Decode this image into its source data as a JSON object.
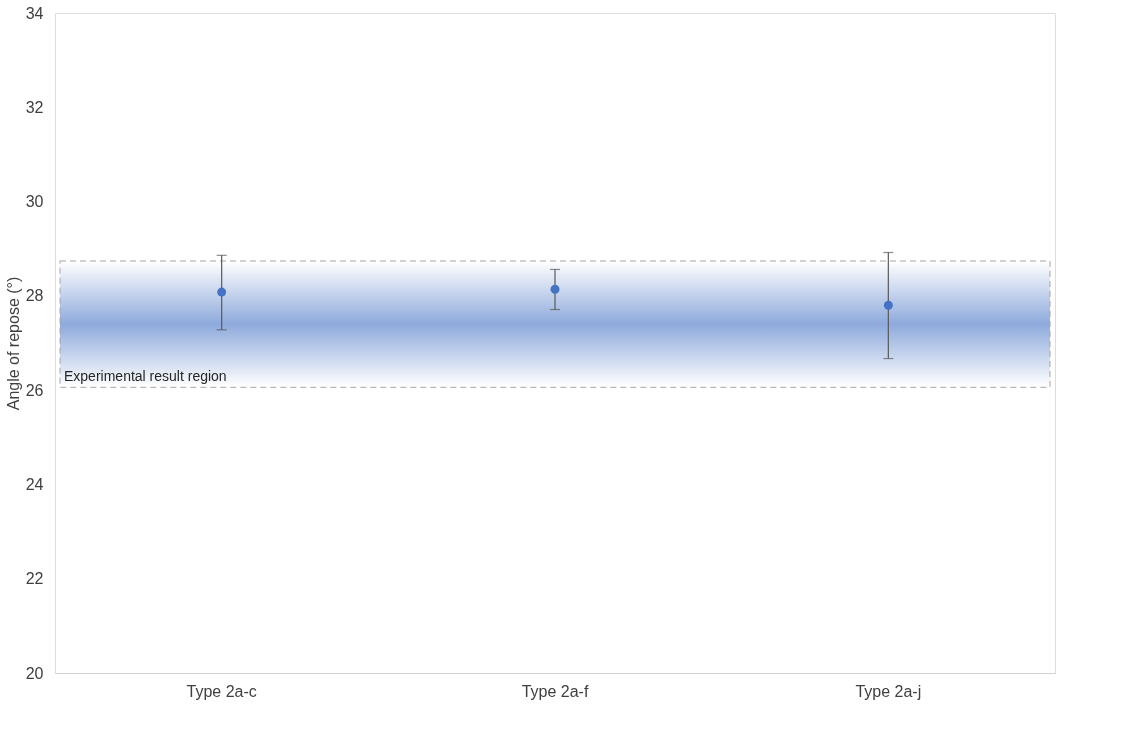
{
  "chart_data": {
    "type": "scatter",
    "categories": [
      "Type 2a-c",
      "Type 2a-f",
      "Type 2a-j"
    ],
    "series": [
      {
        "color": "#4472c4",
        "values": [
          28.08,
          28.14,
          27.8
        ],
        "errors": [
          [
            27.28,
            28.86
          ],
          [
            27.71,
            28.56
          ],
          [
            26.67,
            28.92
          ]
        ]
      }
    ],
    "ylabel": "Angle of repose (°)",
    "ylim": [
      20,
      34
    ],
    "yticks": [
      20,
      22,
      24,
      26,
      28,
      30,
      32,
      34
    ],
    "bands": [
      {
        "axis": "y",
        "from": 26.06,
        "to": 28.74,
        "label": "Experimental result region",
        "color": "#8eaadc"
      }
    ],
    "marker": "circle",
    "grid": false
  }
}
